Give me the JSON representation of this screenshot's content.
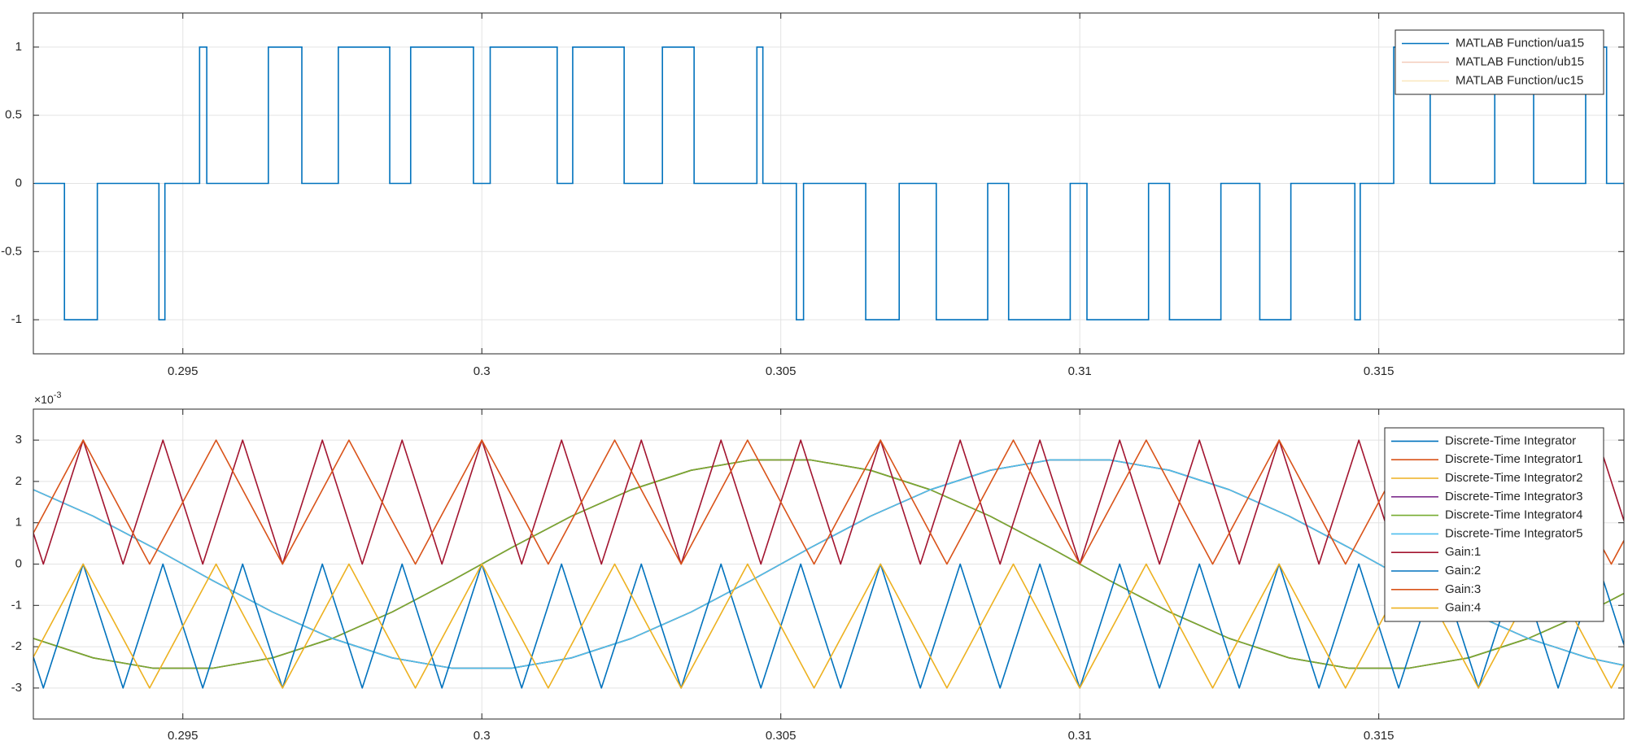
{
  "chart_data": [
    {
      "type": "line",
      "drawstyle": "steps-post",
      "xlim": [
        0.2925,
        0.3191
      ],
      "xticks": [
        0.295,
        0.3,
        0.305,
        0.31,
        0.315
      ],
      "ylim": [
        -1.25,
        1.25
      ],
      "yticks": [
        -1,
        -0.5,
        0,
        0.5,
        1
      ],
      "grid": true,
      "legend": "upper right",
      "x": [
        0.29253,
        0.29302,
        0.29357,
        0.2946,
        0.2947,
        0.29528,
        0.2954,
        0.29643,
        0.29699,
        0.2976,
        0.29846,
        0.29881,
        0.29986,
        0.30014,
        0.30126,
        0.30152,
        0.30238,
        0.30302,
        0.30355,
        0.3046,
        0.3047,
        0.30526,
        0.30538,
        0.30642,
        0.30698,
        0.3076,
        0.30846,
        0.30881,
        0.30984,
        0.31012,
        0.31115,
        0.3115,
        0.31236,
        0.31301,
        0.31353,
        0.3146,
        0.31469,
        0.31525,
        0.31586,
        0.31694,
        0.31759,
        0.31846,
        0.31881
      ],
      "series": [
        {
          "name": "MATLAB Function/ua15",
          "color": "#0072bd",
          "values": [
            0,
            -1,
            0,
            -1,
            0,
            1,
            0,
            1,
            0,
            1,
            0,
            1,
            0,
            1,
            0,
            1,
            0,
            1,
            0,
            1,
            0,
            -1,
            0,
            -1,
            0,
            -1,
            0,
            -1,
            0,
            -1,
            0,
            -1,
            0,
            -1,
            0,
            -1,
            0,
            1,
            0,
            1,
            0,
            1,
            0
          ]
        },
        {
          "name": "MATLAB Function/ub15",
          "color": "#d95319",
          "visible": false
        },
        {
          "name": "MATLAB Function/uc15",
          "color": "#edb120",
          "visible": false
        }
      ]
    },
    {
      "type": "line",
      "xlim": [
        0.2925,
        0.3191
      ],
      "xticks": [
        0.295,
        0.3,
        0.305,
        0.31,
        0.315
      ],
      "ylim": [
        -3.75,
        3.75
      ],
      "yticks": [
        -3,
        -2,
        -1,
        0,
        1,
        2,
        3
      ],
      "grid": true,
      "legend": "upper right",
      "y_multiplier": "×10",
      "y_exponent": "-3",
      "x": [
        0.2925,
        0.2935,
        0.2945,
        0.2955,
        0.2965,
        0.2975,
        0.2985,
        0.2995,
        0.3005,
        0.3015,
        0.3025,
        0.3035,
        0.3045,
        0.3055,
        0.3065,
        0.3075,
        0.3085,
        0.3095,
        0.3105,
        0.3115,
        0.3125,
        0.3135,
        0.3145,
        0.3155,
        0.3165,
        0.3175,
        0.3185,
        0.3191
      ],
      "series": [
        {
          "name": "Discrete-Time Integrator",
          "color": "#0072bd",
          "values": [
            1.8,
            1.16,
            0.4,
            -0.4,
            -1.16,
            -1.8,
            -2.27,
            -2.52,
            -2.52,
            -2.27,
            -1.8,
            -1.16,
            -0.4,
            0.4,
            1.16,
            1.8,
            2.27,
            2.52,
            2.52,
            2.27,
            1.8,
            1.16,
            0.4,
            -0.4,
            -1.16,
            -1.8,
            -2.27,
            -2.45
          ]
        },
        {
          "name": "Discrete-Time Integrator1",
          "color": "#d95319",
          "values": [
            1.8,
            1.16,
            0.4,
            -0.4,
            -1.16,
            -1.8,
            -2.27,
            -2.52,
            -2.52,
            -2.27,
            -1.8,
            -1.16,
            -0.4,
            0.4,
            1.16,
            1.8,
            2.27,
            2.52,
            2.52,
            2.27,
            1.8,
            1.16,
            0.4,
            -0.4,
            -1.16,
            -1.8,
            -2.27,
            -2.45
          ]
        },
        {
          "name": "Discrete-Time Integrator2",
          "color": "#edb120",
          "values": [
            -1.8,
            -2.27,
            -2.52,
            -2.52,
            -2.27,
            -1.8,
            -1.16,
            -0.4,
            0.4,
            1.16,
            1.8,
            2.27,
            2.52,
            2.52,
            2.27,
            1.8,
            1.16,
            0.4,
            -0.4,
            -1.16,
            -1.8,
            -2.27,
            -2.52,
            -2.52,
            -2.27,
            -1.8,
            -1.16,
            -0.71
          ]
        },
        {
          "name": "Discrete-Time Integrator3",
          "color": "#7e2f8e",
          "values": [
            -1.8,
            -2.27,
            -2.52,
            -2.52,
            -2.27,
            -1.8,
            -1.16,
            -0.4,
            0.4,
            1.16,
            1.8,
            2.27,
            2.52,
            2.52,
            2.27,
            1.8,
            1.16,
            0.4,
            -0.4,
            -1.16,
            -1.8,
            -2.27,
            -2.52,
            -2.52,
            -2.27,
            -1.8,
            -1.16,
            -0.71
          ]
        },
        {
          "name": "Discrete-Time Integrator4",
          "color": "#77ac30",
          "values": [
            -1.8,
            -2.27,
            -2.52,
            -2.52,
            -2.27,
            -1.8,
            -1.16,
            -0.4,
            0.4,
            1.16,
            1.8,
            2.27,
            2.52,
            2.52,
            2.27,
            1.8,
            1.16,
            0.4,
            -0.4,
            -1.16,
            -1.8,
            -2.27,
            -2.52,
            -2.52,
            -2.27,
            -1.8,
            -1.16,
            -0.71
          ]
        },
        {
          "name": "Discrete-Time Integrator5",
          "color": "#4dbeee",
          "values": [
            1.8,
            1.16,
            0.4,
            -0.4,
            -1.16,
            -1.8,
            -2.27,
            -2.52,
            -2.52,
            -2.27,
            -1.8,
            -1.16,
            -0.4,
            0.4,
            1.16,
            1.8,
            2.27,
            2.52,
            2.52,
            2.27,
            1.8,
            1.16,
            0.4,
            -0.4,
            -1.16,
            -1.8,
            -2.27,
            -2.45
          ]
        },
        {
          "name": "Gain:1",
          "color": "#a2142f",
          "x": [
            0.2925,
            0.292667,
            0.293333,
            0.294,
            0.294667,
            0.295333,
            0.296,
            0.296667,
            0.297333,
            0.298,
            0.298667,
            0.299333,
            0.3,
            0.300667,
            0.301333,
            0.302,
            0.302667,
            0.303333,
            0.304,
            0.304667,
            0.305333,
            0.306,
            0.306667,
            0.307333,
            0.308,
            0.308667,
            0.309333,
            0.31,
            0.310667,
            0.311333,
            0.312,
            0.312667,
            0.313333,
            0.314,
            0.314667,
            0.315333,
            0.316,
            0.316667,
            0.317333,
            0.318,
            0.318667,
            0.3191
          ],
          "values": [
            0.75,
            0,
            3,
            0,
            3,
            0,
            3,
            0,
            3,
            0,
            3,
            0,
            3,
            0,
            3,
            0,
            3,
            0,
            3,
            0,
            3,
            0,
            3,
            0,
            3,
            0,
            3,
            0,
            3,
            0,
            3,
            0,
            3,
            0,
            3,
            0,
            3,
            0,
            3,
            0,
            3,
            1.05
          ]
        },
        {
          "name": "Gain:2",
          "color": "#0072bd",
          "x": [
            0.2925,
            0.292667,
            0.293333,
            0.294,
            0.294667,
            0.295333,
            0.296,
            0.296667,
            0.297333,
            0.298,
            0.298667,
            0.299333,
            0.3,
            0.300667,
            0.301333,
            0.302,
            0.302667,
            0.303333,
            0.304,
            0.304667,
            0.305333,
            0.306,
            0.306667,
            0.307333,
            0.308,
            0.308667,
            0.309333,
            0.31,
            0.310667,
            0.311333,
            0.312,
            0.312667,
            0.313333,
            0.314,
            0.314667,
            0.315333,
            0.316,
            0.316667,
            0.317333,
            0.318,
            0.318667,
            0.3191
          ],
          "values": [
            -2.25,
            -3,
            0,
            -3,
            0,
            -3,
            0,
            -3,
            0,
            -3,
            0,
            -3,
            0,
            -3,
            0,
            -3,
            0,
            -3,
            0,
            -3,
            0,
            -3,
            0,
            -3,
            0,
            -3,
            0,
            -3,
            0,
            -3,
            0,
            -3,
            0,
            -3,
            0,
            -3,
            0,
            -3,
            0,
            -3,
            0,
            -1.95
          ]
        },
        {
          "name": "Gain:3",
          "color": "#d95319",
          "x": [
            0.2925,
            0.293333,
            0.294444,
            0.295556,
            0.296667,
            0.297778,
            0.298889,
            0.3,
            0.301111,
            0.302222,
            0.303333,
            0.304444,
            0.305556,
            0.306667,
            0.307778,
            0.308889,
            0.31,
            0.311111,
            0.312222,
            0.313333,
            0.314444,
            0.315556,
            0.316667,
            0.317778,
            0.318889,
            0.3191
          ],
          "values": [
            0.75,
            3,
            0,
            3,
            0,
            3,
            0,
            3,
            0,
            3,
            0,
            3,
            0,
            3,
            0,
            3,
            0,
            3,
            0,
            3,
            0,
            3,
            0,
            3,
            0,
            0.57
          ]
        },
        {
          "name": "Gain:4",
          "color": "#edb120",
          "x": [
            0.2925,
            0.293333,
            0.294444,
            0.295556,
            0.296667,
            0.297778,
            0.298889,
            0.3,
            0.301111,
            0.302222,
            0.303333,
            0.304444,
            0.305556,
            0.306667,
            0.307778,
            0.308889,
            0.31,
            0.311111,
            0.312222,
            0.313333,
            0.314444,
            0.315556,
            0.316667,
            0.317778,
            0.318889,
            0.3191
          ],
          "values": [
            -2.25,
            0,
            -3,
            0,
            -3,
            0,
            -3,
            0,
            -3,
            0,
            -3,
            0,
            -3,
            0,
            -3,
            0,
            -3,
            0,
            -3,
            0,
            -3,
            0,
            -3,
            0,
            -3,
            -2.43
          ]
        }
      ]
    }
  ]
}
